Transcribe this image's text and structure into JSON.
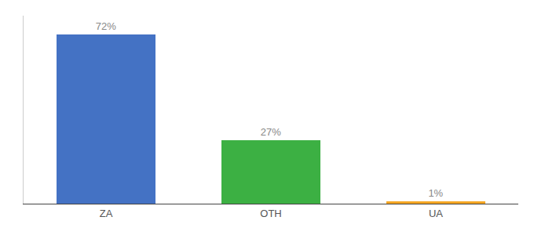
{
  "chart_data": {
    "type": "bar",
    "categories": [
      "ZA",
      "OTH",
      "UA"
    ],
    "values": [
      72,
      27,
      1
    ],
    "value_labels": [
      "72%",
      "27%",
      "1%"
    ],
    "colors": [
      "#4472c4",
      "#3cb043",
      "#f5a623"
    ],
    "ylim": [
      0,
      80
    ],
    "data_labels": true,
    "tick_labels": "x",
    "grid": false
  }
}
